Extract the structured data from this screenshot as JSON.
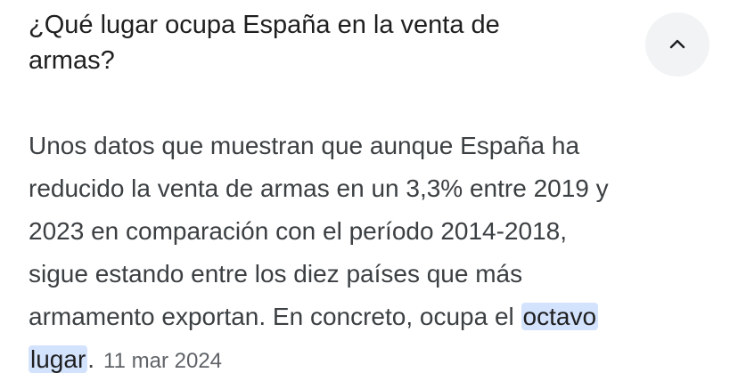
{
  "question": {
    "lines": [
      "¿Qué lugar ocupa España en la venta de",
      "armas?"
    ]
  },
  "answer": {
    "lines": [
      "Unos datos que muestran que aunque España ha",
      "reducido la venta de armas en un 3,3% entre 2019 y",
      "2023 en comparación con el período 2014-2018,",
      "sigue estando entre los diez países que más",
      "armamento exportan. En concreto, ocupa el"
    ],
    "highlight": [
      "octavo",
      "lugar"
    ],
    "end": ".",
    "date": "11 mar 2024"
  }
}
